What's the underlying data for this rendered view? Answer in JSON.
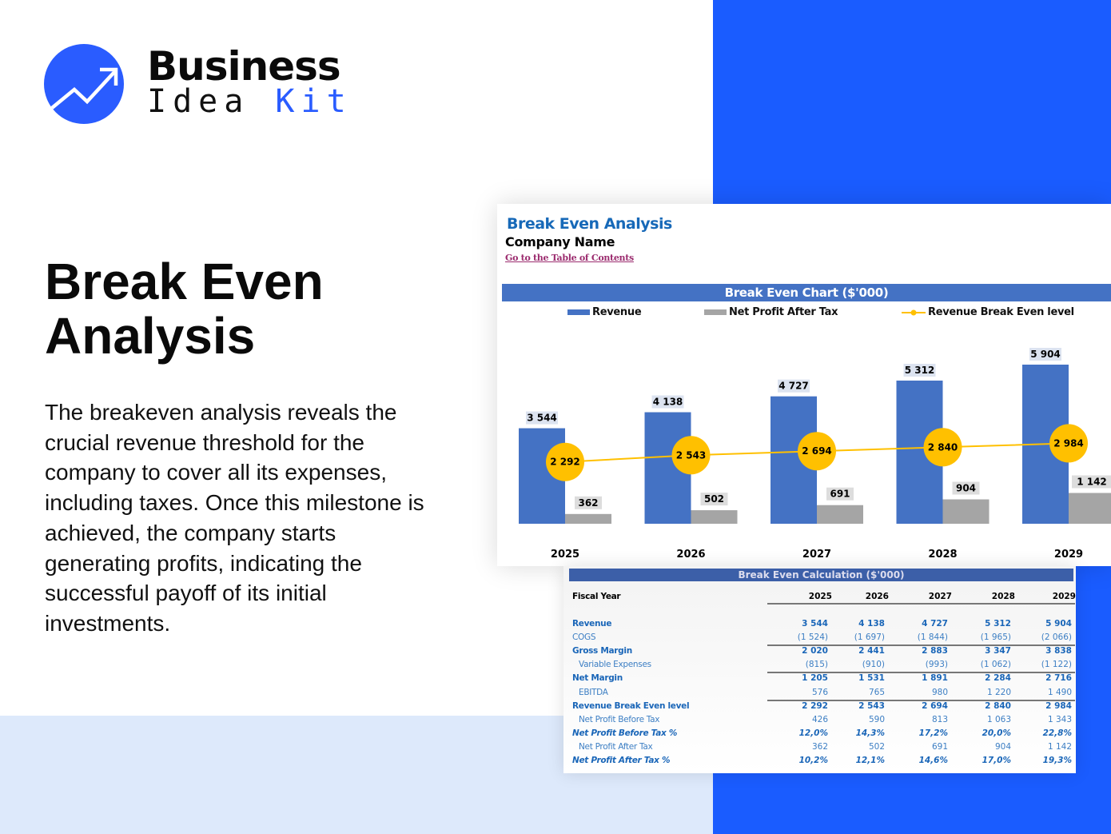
{
  "brand": {
    "name_line1": "Business",
    "name_line2a": "Idea",
    "name_line2b": "Kit",
    "colors": {
      "primary": "#1a5cff",
      "light": "#dde9fb"
    },
    "logo_icon": "trend-arrow-circle"
  },
  "hero": {
    "title_line1": "Break Even",
    "title_line2": "Analysis",
    "description": "The breakeven analysis reveals the crucial revenue threshold for the company to cover all its expenses, including taxes. Once this milestone is achieved, the company starts generating profits, indicating the successful payoff of its initial investments."
  },
  "sheet": {
    "title": "Break Even Analysis",
    "company": "Company Name",
    "toc_link": "Go to the Table of Contents"
  },
  "chart_data": {
    "type": "bar",
    "title": "Break Even Chart ($'000)",
    "categories": [
      "2025",
      "2026",
      "2027",
      "2028",
      "2029"
    ],
    "series": [
      {
        "name": "Revenue",
        "type": "bar",
        "color": "#4472c4",
        "values": [
          3544,
          4138,
          4727,
          5312,
          5904
        ],
        "labels": [
          "3 544",
          "4 138",
          "4 727",
          "5 312",
          "5 904"
        ]
      },
      {
        "name": "Net Profit After Tax",
        "type": "bar",
        "color": "#a5a5a5",
        "values": [
          362,
          502,
          691,
          904,
          1142
        ],
        "labels": [
          "362",
          "502",
          "691",
          "904",
          "1 142"
        ]
      },
      {
        "name": "Revenue Break Even level",
        "type": "line",
        "color": "#ffc000",
        "values": [
          2292,
          2543,
          2694,
          2840,
          2984
        ],
        "labels": [
          "2 292",
          "2 543",
          "2 694",
          "2 840",
          "2 984"
        ]
      }
    ],
    "legend": "top",
    "grid": false,
    "ylim": [
      0,
      5904
    ]
  },
  "table": {
    "title": "Break Even Calculation ($'000)",
    "header": "Fiscal Year",
    "years": [
      "2025",
      "2026",
      "2027",
      "2028",
      "2029"
    ],
    "rows": [
      {
        "label": "Revenue",
        "values": [
          "3 544",
          "4 138",
          "4 727",
          "5 312",
          "5 904"
        ],
        "style": "bold"
      },
      {
        "label": "COGS",
        "values": [
          "(1 524)",
          "(1 697)",
          "(1 844)",
          "(1 965)",
          "(2 066)"
        ],
        "style": "plain"
      },
      {
        "label": "Gross Margin",
        "values": [
          "2 020",
          "2 441",
          "2 883",
          "3 347",
          "3 838"
        ],
        "style": "bold"
      },
      {
        "label": "Variable Expenses",
        "values": [
          "(815)",
          "(910)",
          "(993)",
          "(1 062)",
          "(1 122)"
        ],
        "style": "sub"
      },
      {
        "label": "Net Margin",
        "values": [
          "1 205",
          "1 531",
          "1 891",
          "2 284",
          "2 716"
        ],
        "style": "bold"
      },
      {
        "label": "EBITDA",
        "values": [
          "576",
          "765",
          "980",
          "1 220",
          "1 490"
        ],
        "style": "sub"
      },
      {
        "label": "Revenue Break Even level",
        "values": [
          "2 292",
          "2 543",
          "2 694",
          "2 840",
          "2 984"
        ],
        "style": "bold"
      },
      {
        "label": "Net Profit Before Tax",
        "values": [
          "426",
          "590",
          "813",
          "1 063",
          "1 343"
        ],
        "style": "sub"
      },
      {
        "label": "Net Profit Before Tax %",
        "values": [
          "12,0%",
          "14,3%",
          "17,2%",
          "20,0%",
          "22,8%"
        ],
        "style": "boldital"
      },
      {
        "label": "Net Profit After Tax",
        "values": [
          "362",
          "502",
          "691",
          "904",
          "1 142"
        ],
        "style": "sub"
      },
      {
        "label": "Net Profit After Tax %",
        "values": [
          "10,2%",
          "12,1%",
          "14,6%",
          "17,0%",
          "19,3%"
        ],
        "style": "boldital"
      }
    ]
  }
}
